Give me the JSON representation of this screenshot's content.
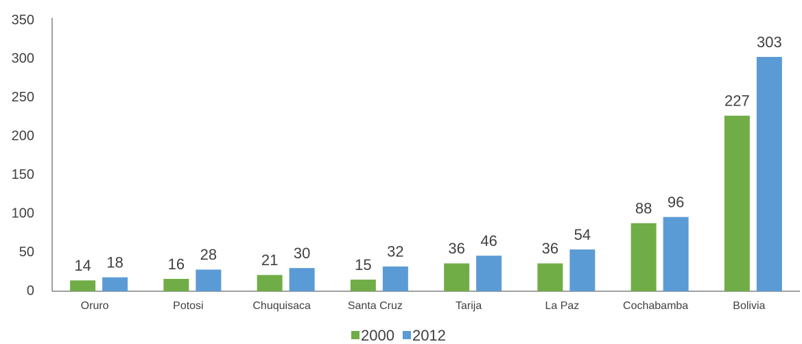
{
  "chart_data": {
    "type": "bar",
    "categories": [
      "Oruro",
      "Potosi",
      "Chuquisaca",
      "Santa Cruz",
      "Tarija",
      "La Paz",
      "Cochabamba",
      "Bolivia"
    ],
    "series": [
      {
        "name": "2000",
        "color": "#70ad47",
        "values": [
          14,
          16,
          21,
          15,
          36,
          36,
          88,
          227
        ]
      },
      {
        "name": "2012",
        "color": "#5b9bd5",
        "values": [
          18,
          28,
          30,
          32,
          46,
          54,
          96,
          303
        ]
      }
    ],
    "ylim": [
      0,
      350
    ],
    "yticks": [
      0,
      50,
      100,
      150,
      200,
      250,
      300,
      350
    ],
    "grid": false,
    "legend": "bottom"
  }
}
